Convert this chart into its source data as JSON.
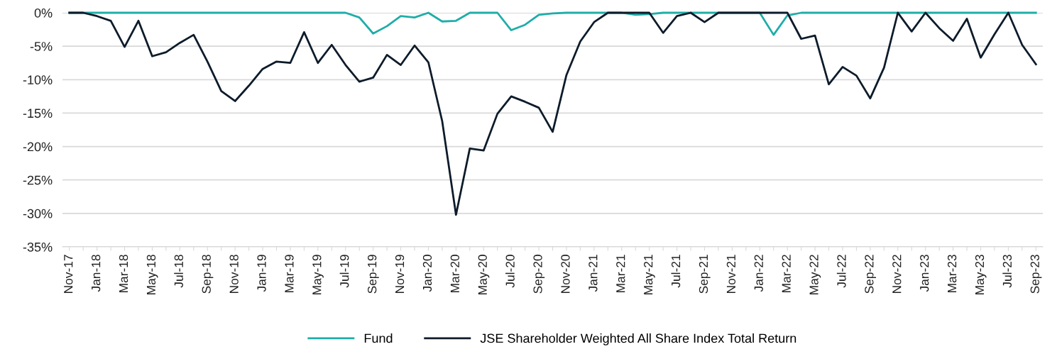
{
  "chart_data": {
    "type": "line",
    "categories": [
      "Nov-17",
      null,
      "Jan-18",
      null,
      "Mar-18",
      null,
      "May-18",
      null,
      "Jul-18",
      null,
      "Sep-18",
      null,
      "Nov-18",
      null,
      "Jan-19",
      null,
      "Mar-19",
      null,
      "May-19",
      null,
      "Jul-19",
      null,
      "Sep-19",
      null,
      "Nov-19",
      null,
      "Jan-20",
      null,
      "Mar-20",
      null,
      "May-20",
      null,
      "Jul-20",
      null,
      "Sep-20",
      null,
      "Nov-20",
      null,
      "Jan-21",
      null,
      "Mar-21",
      null,
      "May-21",
      null,
      "Jul-21",
      null,
      "Sep-21",
      null,
      "Nov-21",
      null,
      "Jan-22",
      null,
      "Mar-22",
      null,
      "May-22",
      null,
      "Jul-22",
      null,
      "Sep-22",
      null,
      "Nov-22",
      null,
      "Jan-23",
      null,
      "Mar-23",
      null,
      "May-23",
      null,
      "Jul-23",
      null,
      "Sep-23"
    ],
    "series": [
      {
        "name": "Fund",
        "color": "#1fada8",
        "values": [
          0,
          0,
          0,
          0,
          0,
          0,
          0,
          0,
          0,
          0,
          0,
          0,
          0,
          0,
          0,
          0,
          0,
          0,
          0,
          0,
          0,
          -0.7,
          -3.1,
          -2.0,
          -0.5,
          -0.7,
          0,
          -1.3,
          -1.2,
          0,
          0,
          0,
          -2.6,
          -1.8,
          -0.3,
          -0.1,
          0,
          0,
          0,
          0,
          0,
          -0.3,
          -0.2,
          0,
          0,
          0,
          0,
          0,
          0,
          0,
          0,
          -3.3,
          -0.4,
          0,
          0,
          0,
          0,
          0,
          0,
          0,
          0,
          0,
          0,
          0,
          0,
          0,
          0,
          0,
          0,
          0,
          0
        ]
      },
      {
        "name": "JSE Shareholder Weighted All Share Index Total Return",
        "color": "#0d1b2a",
        "values": [
          0,
          0,
          -0.5,
          -1.2,
          -5.1,
          -1.2,
          -6.5,
          -5.9,
          -4.5,
          -3.3,
          -7.3,
          -11.7,
          -13.2,
          -10.9,
          -8.4,
          -7.3,
          -7.5,
          -2.9,
          -7.5,
          -4.8,
          -7.8,
          -10.3,
          -9.7,
          -6.3,
          -7.8,
          -4.9,
          -7.4,
          -16.2,
          -30.2,
          -20.3,
          -20.6,
          -15.1,
          -12.5,
          -13.3,
          -14.2,
          -17.8,
          -9.3,
          -4.3,
          -1.4,
          0,
          0,
          0,
          0,
          -3.0,
          -0.5,
          0,
          -1.4,
          0,
          0,
          0,
          0,
          0,
          0,
          -3.9,
          -3.4,
          -10.7,
          -8.1,
          -9.4,
          -12.8,
          -8.2,
          0,
          -2.8,
          0,
          -2.3,
          -4.2,
          -0.9,
          -6.7,
          -3.2,
          0,
          -4.8,
          -7.7
        ]
      }
    ],
    "ylim": [
      -35,
      0
    ],
    "yticks": [
      {
        "value": -35,
        "label": "-35%"
      },
      {
        "value": -30,
        "label": "-30%"
      },
      {
        "value": -25,
        "label": "-25%"
      },
      {
        "value": -20,
        "label": "-20%"
      },
      {
        "value": -15,
        "label": "-15%"
      },
      {
        "value": -10,
        "label": "-10%"
      },
      {
        "value": -5,
        "label": "-5%"
      },
      {
        "value": 0,
        "label": "0%"
      }
    ],
    "grid": "y",
    "legend": "bottom",
    "marker": "none",
    "line_style": "solid"
  }
}
